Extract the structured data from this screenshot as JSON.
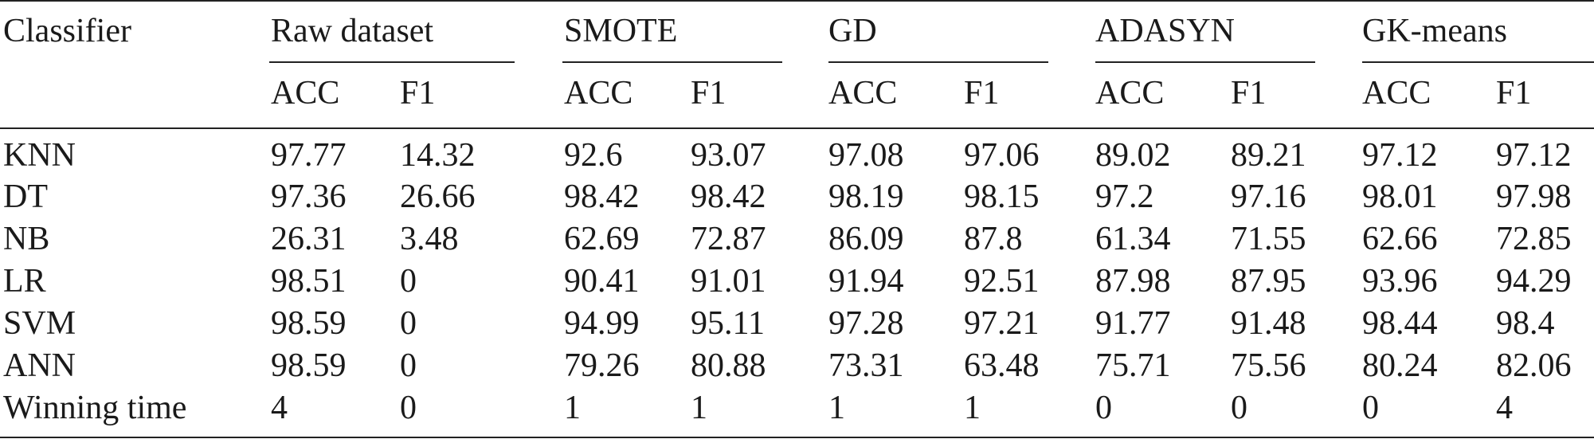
{
  "table": {
    "header": {
      "classifier_label": "Classifier",
      "groups": [
        {
          "name": "Raw dataset",
          "sub": [
            "ACC",
            "F1"
          ]
        },
        {
          "name": "SMOTE",
          "sub": [
            "ACC",
            "F1"
          ]
        },
        {
          "name": "GD",
          "sub": [
            "ACC",
            "F1"
          ]
        },
        {
          "name": "ADASYN",
          "sub": [
            "ACC",
            "F1"
          ]
        },
        {
          "name": "GK-means",
          "sub": [
            "ACC",
            "F1"
          ]
        }
      ]
    },
    "rows": [
      {
        "label": "KNN",
        "values": [
          "97.77",
          "14.32",
          "92.6",
          "93.07",
          "97.08",
          "97.06",
          "89.02",
          "89.21",
          "97.12",
          "97.12"
        ]
      },
      {
        "label": "DT",
        "values": [
          "97.36",
          "26.66",
          "98.42",
          "98.42",
          "98.19",
          "98.15",
          "97.2",
          "97.16",
          "98.01",
          "97.98"
        ]
      },
      {
        "label": "NB",
        "values": [
          "26.31",
          "3.48",
          "62.69",
          "72.87",
          "86.09",
          "87.8",
          "61.34",
          "71.55",
          "62.66",
          "72.85"
        ]
      },
      {
        "label": "LR",
        "values": [
          "98.51",
          "0",
          "90.41",
          "91.01",
          "91.94",
          "92.51",
          "87.98",
          "87.95",
          "93.96",
          "94.29"
        ]
      },
      {
        "label": "SVM",
        "values": [
          "98.59",
          "0",
          "94.99",
          "95.11",
          "97.28",
          "97.21",
          "91.77",
          "91.48",
          "98.44",
          "98.4"
        ]
      },
      {
        "label": "ANN",
        "values": [
          "98.59",
          "0",
          "79.26",
          "80.88",
          "73.31",
          "63.48",
          "75.71",
          "75.56",
          "80.24",
          "82.06"
        ]
      },
      {
        "label": "Winning time",
        "values": [
          "4",
          "0",
          "1",
          "1",
          "1",
          "1",
          "0",
          "0",
          "0",
          "4"
        ]
      }
    ]
  }
}
